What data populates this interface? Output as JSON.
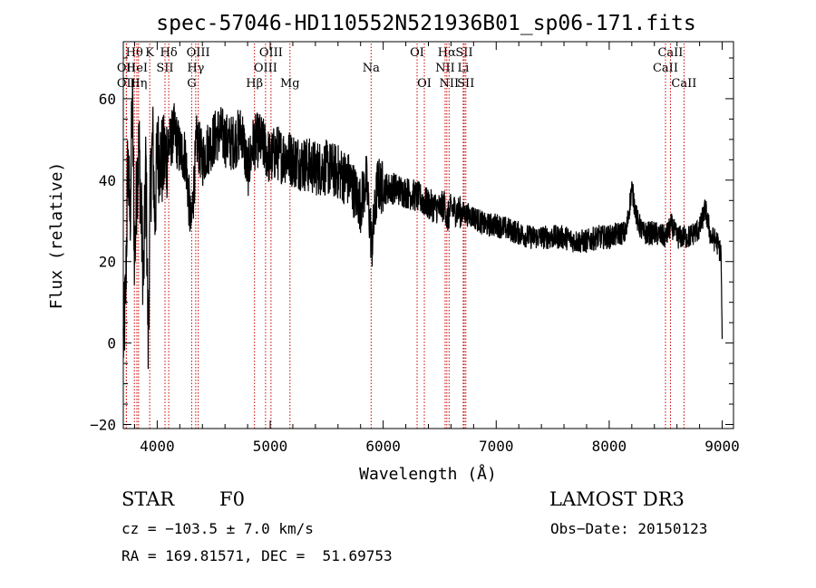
{
  "chart_data": {
    "type": "line",
    "title": "spec-57046-HD110552N521936B01_sp06-171.fits",
    "xlabel": "Wavelength (Å)",
    "ylabel": "Flux (relative)",
    "xlim": [
      3700,
      9100
    ],
    "ylim": [
      -21,
      74
    ],
    "x_ticks": [
      4000,
      5000,
      6000,
      7000,
      8000,
      9000
    ],
    "y_ticks": [
      -20,
      0,
      20,
      40,
      60
    ],
    "line_color": "#000000",
    "marker_color": "#cc0000",
    "series": [
      {
        "name": "flux",
        "x": [
          3700,
          3720,
          3740,
          3760,
          3780,
          3800,
          3820,
          3840,
          3860,
          3880,
          3900,
          3920,
          3940,
          3960,
          3980,
          4000,
          4050,
          4100,
          4150,
          4200,
          4250,
          4300,
          4350,
          4400,
          4450,
          4500,
          4550,
          4600,
          4650,
          4700,
          4750,
          4800,
          4850,
          4900,
          4950,
          5000,
          5050,
          5100,
          5150,
          5200,
          5300,
          5400,
          5500,
          5600,
          5700,
          5800,
          5850,
          5900,
          5950,
          6000,
          6100,
          6200,
          6300,
          6400,
          6500,
          6550,
          6563,
          6600,
          6700,
          6800,
          6900,
          7000,
          7100,
          7200,
          7300,
          7400,
          7500,
          7600,
          7700,
          7800,
          7900,
          8000,
          8100,
          8150,
          8200,
          8250,
          8300,
          8400,
          8500,
          8550,
          8600,
          8700,
          8800,
          8850,
          8900,
          8950,
          8990,
          9000
        ],
        "y": [
          0,
          10,
          45,
          30,
          60,
          20,
          40,
          48,
          30,
          15,
          45,
          0,
          38,
          50,
          30,
          47,
          44,
          48,
          52,
          47,
          46,
          28,
          50,
          45,
          48,
          50,
          52,
          50,
          49,
          50,
          52,
          42,
          49,
          50,
          48,
          45,
          47,
          46,
          46,
          45,
          44,
          43,
          43,
          42,
          40,
          34,
          40,
          24,
          39,
          38,
          38,
          37,
          36,
          34,
          33,
          34,
          30,
          33,
          32,
          31,
          29,
          29,
          28,
          27,
          26,
          26,
          26,
          26,
          25,
          25,
          26,
          26,
          27,
          27,
          38,
          30,
          27,
          27,
          26,
          29,
          26,
          26,
          28,
          33,
          26,
          25,
          22,
          1
        ]
      }
    ],
    "line_markers": [
      {
        "label": "OII",
        "x": 3727,
        "row": 2
      },
      {
        "label": "OII",
        "x": 3727,
        "row": 3
      },
      {
        "label": "Hθ",
        "x": 3798,
        "row": 1
      },
      {
        "label": "HeI",
        "x": 3820,
        "row": 2
      },
      {
        "label": "Hη",
        "x": 3835,
        "row": 3
      },
      {
        "label": "K",
        "x": 3934,
        "row": 1
      },
      {
        "label": "SII",
        "x": 4069,
        "row": 2
      },
      {
        "label": "Hδ",
        "x": 4102,
        "row": 1
      },
      {
        "label": "OIII",
        "x": 4363,
        "row": 1
      },
      {
        "label": "Hγ",
        "x": 4341,
        "row": 2
      },
      {
        "label": "G",
        "x": 4305,
        "row": 3
      },
      {
        "label": "Hβ",
        "x": 4861,
        "row": 3
      },
      {
        "label": "OIII",
        "x": 5007,
        "row": 1
      },
      {
        "label": "OIII",
        "x": 4959,
        "row": 2
      },
      {
        "label": "Mg",
        "x": 5175,
        "row": 3
      },
      {
        "label": "Na",
        "x": 5893,
        "row": 2
      },
      {
        "label": "OI",
        "x": 6300,
        "row": 1
      },
      {
        "label": "OI",
        "x": 6364,
        "row": 3
      },
      {
        "label": "Hα",
        "x": 6563,
        "row": 1
      },
      {
        "label": "NII",
        "x": 6548,
        "row": 2
      },
      {
        "label": "NII",
        "x": 6583,
        "row": 3
      },
      {
        "label": "SII",
        "x": 6717,
        "row": 1
      },
      {
        "label": "Li",
        "x": 6708,
        "row": 2
      },
      {
        "label": "SII",
        "x": 6731,
        "row": 3
      },
      {
        "label": "CaII",
        "x": 8542,
        "row": 1
      },
      {
        "label": "CaII",
        "x": 8498,
        "row": 2
      },
      {
        "label": "CaII",
        "x": 8662,
        "row": 3
      }
    ]
  },
  "info": {
    "class": "STAR",
    "subclass": "F0",
    "survey": "LAMOST DR3",
    "cz": "cz = −103.5 ± 7.0 km/s",
    "obs_date": "Obs−Date: 20150123",
    "coords": "RA = 169.81571, DEC =  51.69753"
  }
}
